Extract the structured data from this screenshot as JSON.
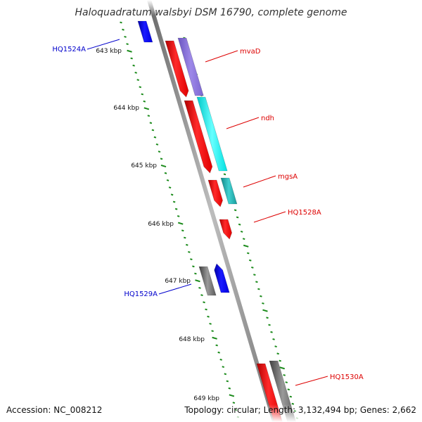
{
  "title": "Haloquadratum walsbyi DSM 16790, complete genome",
  "footer": {
    "accession": "Accession: NC_008212",
    "summary": "Topology: circular; Length: 3,132,494 bp; Genes: 2,662"
  },
  "ticks": [
    {
      "label": "643 kbp"
    },
    {
      "label": "644 kbp"
    },
    {
      "label": "645 kbp"
    },
    {
      "label": "646 kbp"
    },
    {
      "label": "647 kbp"
    },
    {
      "label": "648 kbp"
    },
    {
      "label": "649 kbp"
    }
  ],
  "gene_labels": [
    {
      "label": "HQ1524A",
      "color": "#0000cc"
    },
    {
      "label": "mvaD",
      "color": "#dd0000"
    },
    {
      "label": "ndh",
      "color": "#dd0000"
    },
    {
      "label": "mgsA",
      "color": "#dd0000"
    },
    {
      "label": "HQ1528A",
      "color": "#dd0000"
    },
    {
      "label": "HQ1529A",
      "color": "#0000cc"
    },
    {
      "label": "HQ1530A",
      "color": "#dd0000"
    }
  ],
  "colors": {
    "forward_cds": "#ff0000",
    "reverse_cds": "#0000ff",
    "blast_purple": "#8870d8",
    "blast_cyan": "#00f0f0",
    "blast_teal": "#20b8b8",
    "blast_gray": "#707070",
    "backbone": "#8a8a8a",
    "tick_green": "#1a8a1a"
  }
}
